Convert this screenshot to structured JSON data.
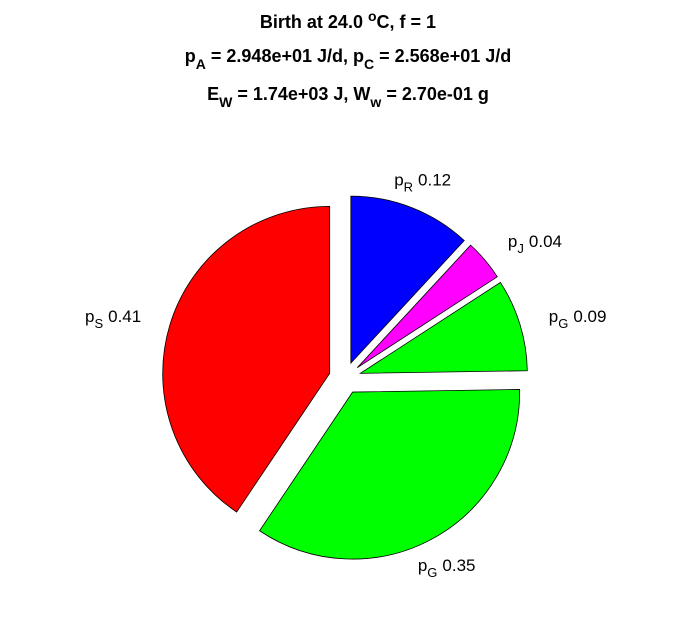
{
  "chart_data": {
    "type": "pie",
    "title": [
      [
        {
          "text": "Birth at 24.0 "
        },
        {
          "text": "o",
          "shift": "sup"
        },
        {
          "text": "C, f = 1"
        }
      ],
      [
        {
          "text": "p"
        },
        {
          "text": "A",
          "shift": "sub"
        },
        {
          "text": " = 2.948e+01 J/d, p"
        },
        {
          "text": "C",
          "shift": "sub"
        },
        {
          "text": " = 2.568e+01 J/d"
        }
      ],
      [
        {
          "text": "E"
        },
        {
          "text": "W",
          "shift": "sub"
        },
        {
          "text": " = 1.74e+03 J, W"
        },
        {
          "text": "w",
          "shift": "sub"
        },
        {
          "text": " = 2.70e-01 g"
        }
      ]
    ],
    "categories": [
      {
        "symbol": "p",
        "subscript": "R"
      },
      {
        "symbol": "p",
        "subscript": "J"
      },
      {
        "symbol": "p",
        "subscript": "G"
      },
      {
        "symbol": "p",
        "subscript": "G"
      },
      {
        "symbol": "p",
        "subscript": "S"
      }
    ],
    "values": [
      0.12,
      0.04,
      0.09,
      0.35,
      0.41
    ],
    "colors": [
      "#0000ff",
      "#ff00ff",
      "#00ff00",
      "#00ff00",
      "#ff0000"
    ]
  }
}
